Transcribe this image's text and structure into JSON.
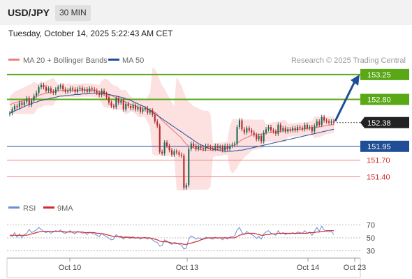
{
  "header": {
    "symbol": "USD/JPY",
    "timeframe": "30 MIN"
  },
  "timestamp": "Tuesday, October 14, 2025 5:22:43 AM CET",
  "legend": {
    "ma20": "MA 20 + Bollinger Bands",
    "ma50": "MA 50",
    "credit": "Research © 2025 Trading Central"
  },
  "rsi_legend": {
    "rsi": "RSI",
    "ma9": "9MA"
  },
  "colors": {
    "ma20": "#f08080",
    "ma50": "#1f4e96",
    "band": "#fde0e0",
    "green": "#5aa817",
    "resistance_red": "#f08080",
    "support_blue": "#1f4e96",
    "up": "#1a6b5a",
    "down": "#b02a2a",
    "rsi": "#6b8fd6",
    "rsi_ma": "#d42a2a"
  },
  "chart_data": [
    {
      "type": "candlestick",
      "title": "USD/JPY 30 MIN",
      "y_range": [
        151.0,
        153.4
      ],
      "x_labels": [
        "Oct 10",
        "Oct 13",
        "Oct 14",
        "Oct 23"
      ],
      "levels": [
        {
          "value": 153.25,
          "label": "153.25",
          "style": "resistance",
          "color": "#5aa817"
        },
        {
          "value": 152.8,
          "label": "152.80",
          "style": "resistance",
          "color": "#5aa817"
        },
        {
          "value": 152.38,
          "label": "152.38",
          "style": "last",
          "color": "#222222"
        },
        {
          "value": 151.95,
          "label": "151.95",
          "style": "pivot",
          "color": "#1f4e96"
        },
        {
          "value": 151.7,
          "label": "151.70",
          "style": "support",
          "color": "#f08080"
        },
        {
          "value": 151.4,
          "label": "151.40",
          "style": "support",
          "color": "#f08080"
        }
      ],
      "close": [
        152.55,
        152.62,
        152.68,
        152.66,
        152.74,
        152.7,
        152.76,
        152.82,
        152.7,
        152.78,
        152.86,
        152.92,
        153.02,
        153.06,
        153.02,
        152.96,
        153.0,
        152.94,
        152.92,
        152.98,
        153.02,
        153.05,
        152.98,
        152.94,
        152.96,
        153.0,
        152.98,
        152.94,
        152.99,
        153.01,
        152.96,
        152.98,
        152.94,
        153.0,
        152.98,
        152.96,
        152.92,
        152.88,
        152.96,
        152.9,
        152.84,
        152.74,
        152.68,
        152.66,
        152.82,
        152.74,
        152.78,
        152.62,
        152.72,
        152.68,
        152.64,
        152.7,
        152.62,
        152.66,
        152.58,
        152.62,
        152.64,
        152.56,
        152.6,
        152.52,
        152.4,
        152.32,
        151.85,
        151.82,
        152.02,
        151.96,
        151.88,
        151.8,
        151.86,
        151.84,
        151.8,
        151.78,
        151.2,
        151.25,
        151.9,
        152.0,
        151.96,
        151.9,
        151.94,
        151.92,
        151.9,
        151.96,
        151.94,
        151.92,
        151.9,
        151.96,
        151.92,
        151.94,
        151.88,
        151.96,
        151.9,
        151.96,
        151.98,
        152.0,
        152.3,
        152.42,
        152.26,
        152.2,
        152.28,
        152.24,
        152.2,
        152.16,
        152.08,
        152.14,
        152.04,
        152.2,
        152.26,
        152.3,
        152.24,
        152.22,
        152.18,
        152.34,
        152.24,
        152.28,
        152.22,
        152.26,
        152.24,
        152.28,
        152.24,
        152.3,
        152.28,
        152.26,
        152.34,
        152.28,
        152.3,
        152.22,
        152.32,
        152.4,
        152.34,
        152.48,
        152.42,
        152.4,
        152.38,
        152.4,
        152.38
      ],
      "ma20": [
        152.7,
        152.72,
        152.74,
        152.75,
        152.76,
        152.77,
        152.78,
        152.79,
        152.8,
        152.81,
        152.83,
        152.85,
        152.87,
        152.89,
        152.9,
        152.91,
        152.92,
        152.93,
        152.94,
        152.95,
        152.96,
        152.96,
        152.96,
        152.96,
        152.96,
        152.96,
        152.96,
        152.96,
        152.96,
        152.96,
        152.97,
        152.97,
        152.97,
        152.97,
        152.96,
        152.96,
        152.95,
        152.94,
        152.93,
        152.92,
        152.91,
        152.89,
        152.87,
        152.85,
        152.83,
        152.81,
        152.79,
        152.77,
        152.75,
        152.73,
        152.71,
        152.7,
        152.68,
        152.66,
        152.65,
        152.64,
        152.63,
        152.62,
        152.61,
        152.59,
        152.57,
        152.53,
        152.47,
        152.42,
        152.38,
        152.34,
        152.3,
        152.26,
        152.22,
        152.18,
        152.14,
        152.1,
        152.04,
        151.99,
        151.96,
        151.94,
        151.92,
        151.91,
        151.9,
        151.89,
        151.88,
        151.88,
        151.88,
        151.88,
        151.88,
        151.89,
        151.89,
        151.9,
        151.9,
        151.91,
        151.92,
        151.93,
        151.95,
        151.97,
        152.0,
        152.04,
        152.07,
        152.09,
        152.11,
        152.13,
        152.15,
        152.16,
        152.16,
        152.17,
        152.17,
        152.18,
        152.19,
        152.2,
        152.2,
        152.21,
        152.21,
        152.22,
        152.22,
        152.23,
        152.23,
        152.24,
        152.24,
        152.25,
        152.25,
        152.26,
        152.26,
        152.26,
        152.27,
        152.27,
        152.28,
        152.28,
        152.29,
        152.3,
        152.3,
        152.31,
        152.32,
        152.33,
        152.33,
        152.34,
        152.34
      ],
      "ma50": [
        152.55,
        152.57,
        152.59,
        152.61,
        152.63,
        152.65,
        152.67,
        152.69,
        152.71,
        152.72,
        152.74,
        152.75,
        152.77,
        152.78,
        152.79,
        152.8,
        152.81,
        152.82,
        152.83,
        152.84,
        152.85,
        152.86,
        152.86,
        152.87,
        152.87,
        152.88,
        152.88,
        152.89,
        152.89,
        152.89,
        152.9,
        152.9,
        152.9,
        152.91,
        152.91,
        152.91,
        152.91,
        152.91,
        152.91,
        152.9,
        152.9,
        152.89,
        152.88,
        152.87,
        152.86,
        152.85,
        152.84,
        152.83,
        152.81,
        152.8,
        152.78,
        152.76,
        152.74,
        152.72,
        152.7,
        152.68,
        152.66,
        152.63,
        152.6,
        152.57,
        152.54,
        152.51,
        152.48,
        152.45,
        152.42,
        152.39,
        152.36,
        152.33,
        152.3,
        152.27,
        152.24,
        152.21,
        152.18,
        152.15,
        152.12,
        152.09,
        152.06,
        152.03,
        152.0,
        151.98,
        151.96,
        151.94,
        151.92,
        151.91,
        151.9,
        151.89,
        151.88,
        151.87,
        151.87,
        151.86,
        151.86,
        151.86,
        151.86,
        151.87,
        151.87,
        151.88,
        151.88,
        151.89,
        151.9,
        151.91,
        151.92,
        151.93,
        151.94,
        151.95,
        151.96,
        151.97,
        151.98,
        151.99,
        152.0,
        152.01,
        152.02,
        152.03,
        152.04,
        152.05,
        152.06,
        152.07,
        152.08,
        152.09,
        152.1,
        152.11,
        152.12,
        152.13,
        152.14,
        152.15,
        152.16,
        152.17,
        152.18,
        152.19,
        152.2,
        152.21,
        152.22,
        152.23,
        152.24,
        152.25,
        152.26
      ]
    },
    {
      "type": "line",
      "title": "RSI",
      "y_range": [
        20,
        80
      ],
      "y_ticks": [
        70,
        50,
        30
      ],
      "rsi": [
        54,
        52,
        58,
        51,
        56,
        50,
        55,
        57,
        63,
        58,
        60,
        62,
        66,
        63,
        60,
        58,
        60,
        57,
        59,
        61,
        60,
        62,
        58,
        57,
        59,
        61,
        58,
        56,
        60,
        59,
        57,
        58,
        55,
        59,
        57,
        56,
        54,
        52,
        57,
        54,
        52,
        49,
        47,
        48,
        55,
        51,
        53,
        48,
        52,
        50,
        49,
        52,
        49,
        51,
        48,
        50,
        51,
        48,
        50,
        47,
        44,
        43,
        37,
        38,
        47,
        45,
        42,
        40,
        43,
        42,
        40,
        39,
        33,
        34,
        48,
        53,
        51,
        48,
        50,
        49,
        48,
        51,
        50,
        49,
        48,
        51,
        49,
        50,
        47,
        51,
        48,
        51,
        52,
        53,
        62,
        66,
        58,
        55,
        60,
        57,
        55,
        53,
        49,
        52,
        48,
        56,
        59,
        61,
        57,
        56,
        54,
        61,
        56,
        58,
        55,
        57,
        56,
        58,
        56,
        59,
        58,
        57,
        61,
        57,
        59,
        54,
        60,
        66,
        60,
        68,
        62,
        60,
        59,
        60,
        55
      ],
      "ma9": [
        54,
        54,
        54,
        54,
        54,
        54,
        54,
        54,
        55,
        56,
        57,
        58,
        59,
        60,
        60,
        60,
        60,
        60,
        60,
        60,
        60,
        60,
        60,
        59,
        59,
        59,
        59,
        59,
        59,
        59,
        59,
        58,
        58,
        58,
        58,
        58,
        57,
        57,
        56,
        56,
        55,
        54,
        53,
        52,
        52,
        52,
        51,
        51,
        51,
        51,
        51,
        50,
        50,
        50,
        50,
        50,
        50,
        50,
        50,
        49,
        48,
        47,
        45,
        44,
        44,
        44,
        43,
        42,
        42,
        41,
        41,
        41,
        40,
        40,
        41,
        42,
        43,
        44,
        45,
        47,
        48,
        49,
        50,
        50,
        50,
        50,
        50,
        50,
        50,
        50,
        50,
        50,
        50,
        50,
        52,
        54,
        55,
        56,
        57,
        57,
        57,
        57,
        56,
        55,
        54,
        54,
        55,
        55,
        56,
        56,
        56,
        57,
        57,
        57,
        57,
        57,
        57,
        57,
        57,
        57,
        57,
        57,
        57,
        57,
        58,
        58,
        58,
        59,
        59,
        60,
        60,
        61,
        61,
        61,
        61
      ]
    }
  ]
}
